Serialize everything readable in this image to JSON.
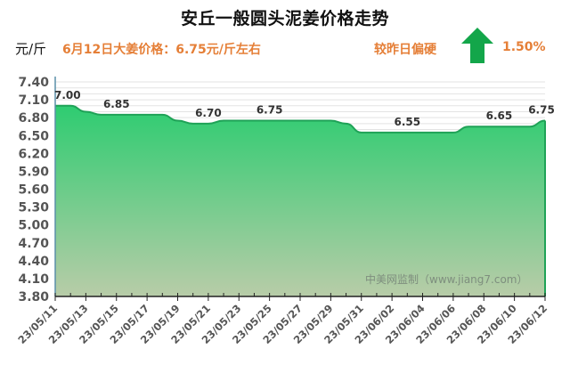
{
  "header": {
    "title": "安丘一般圆头泥姜价格走势",
    "unit": "元/斤",
    "today_price_text": "6月12日大姜价格：6.75元/斤左右",
    "compare_text": "较昨日偏硬",
    "trend_icon": "arrow-up-icon",
    "change_percent": "1.50%"
  },
  "watermark": "中美网监制（www.jiang7.com）",
  "colors": {
    "accent_orange": "#e57f37",
    "area_top": "#2ecc71",
    "area_bottom": "#b8cca8",
    "line": "#1fa257",
    "arrow": "#13a64a"
  },
  "chart_data": {
    "type": "area",
    "title": "安丘一般圆头泥姜价格走势",
    "ylabel": "元/斤",
    "xlabel": "",
    "ylim": [
      3.8,
      7.4
    ],
    "yticks": [
      "3.80",
      "4.10",
      "4.40",
      "4.70",
      "5.00",
      "5.30",
      "5.60",
      "5.90",
      "6.20",
      "6.50",
      "6.80",
      "7.10",
      "7.40"
    ],
    "grid": true,
    "legend": "none",
    "x": [
      "23/05/11",
      "23/05/12",
      "23/05/13",
      "23/05/14",
      "23/05/15",
      "23/05/16",
      "23/05/17",
      "23/05/18",
      "23/05/19",
      "23/05/20",
      "23/05/21",
      "23/05/22",
      "23/05/23",
      "23/05/24",
      "23/05/25",
      "23/05/26",
      "23/05/27",
      "23/05/28",
      "23/05/29",
      "23/05/30",
      "23/05/31",
      "23/06/01",
      "23/06/02",
      "23/06/03",
      "23/06/04",
      "23/06/05",
      "23/06/06",
      "23/06/07",
      "23/06/08",
      "23/06/09",
      "23/06/10",
      "23/06/11",
      "23/06/12"
    ],
    "xtick_labels": [
      "23/05/11",
      "23/05/13",
      "23/05/15",
      "23/05/17",
      "23/05/19",
      "23/05/21",
      "23/05/23",
      "23/05/25",
      "23/05/27",
      "23/05/29",
      "23/05/31",
      "23/06/02",
      "23/06/04",
      "23/06/06",
      "23/06/08",
      "23/06/10",
      "23/06/12"
    ],
    "series": [
      {
        "name": "大姜价格",
        "values": [
          7.0,
          7.0,
          6.9,
          6.85,
          6.85,
          6.85,
          6.85,
          6.85,
          6.75,
          6.7,
          6.7,
          6.75,
          6.75,
          6.75,
          6.75,
          6.75,
          6.75,
          6.75,
          6.75,
          6.7,
          6.55,
          6.55,
          6.55,
          6.55,
          6.55,
          6.55,
          6.55,
          6.65,
          6.65,
          6.65,
          6.65,
          6.65,
          6.75
        ]
      }
    ],
    "annotations": [
      {
        "x": "23/05/11",
        "label": "7.00"
      },
      {
        "x": "23/05/15",
        "label": "6.85"
      },
      {
        "x": "23/05/21",
        "label": "6.70"
      },
      {
        "x": "23/05/25",
        "label": "6.75"
      },
      {
        "x": "23/06/03",
        "label": "6.55"
      },
      {
        "x": "23/06/09",
        "label": "6.65"
      },
      {
        "x": "23/06/12",
        "label": "6.75"
      }
    ]
  }
}
